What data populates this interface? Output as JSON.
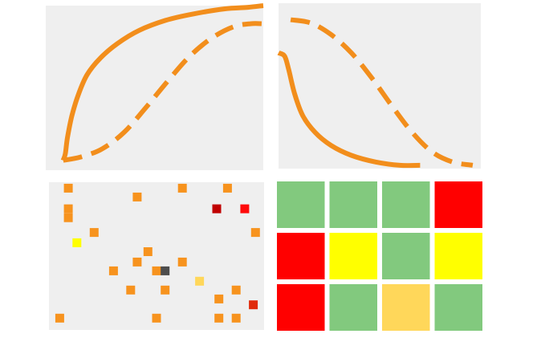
{
  "colors": {
    "panel_bg": "#efefef",
    "curve": "#f28e1c",
    "grid_green": "#82c97e",
    "grid_red": "#ff0000",
    "grid_yellow": "#ffff00",
    "grid_lightorange": "#ffd75a"
  },
  "chart_data": [
    {
      "type": "line",
      "panel": "top-left",
      "grid": false,
      "xlim": [
        0,
        1
      ],
      "ylim": [
        0,
        1
      ],
      "series": [
        {
          "style": "solid",
          "color": "#f28e1c",
          "x": [
            0.08,
            0.09,
            0.1,
            0.12,
            0.15,
            0.19,
            0.25,
            0.33,
            0.43,
            0.55,
            0.68,
            0.82,
            0.93,
            1.0
          ],
          "y": [
            0.06,
            0.1,
            0.2,
            0.33,
            0.46,
            0.58,
            0.68,
            0.77,
            0.85,
            0.91,
            0.95,
            0.98,
            0.99,
            1.0
          ]
        },
        {
          "style": "dashed",
          "color": "#f28e1c",
          "x": [
            0.08,
            0.16,
            0.26,
            0.36,
            0.46,
            0.56,
            0.66,
            0.76,
            0.86,
            0.94,
            1.0
          ],
          "y": [
            0.06,
            0.08,
            0.13,
            0.23,
            0.38,
            0.54,
            0.69,
            0.8,
            0.87,
            0.89,
            0.89
          ]
        }
      ]
    },
    {
      "type": "line",
      "panel": "top-right",
      "grid": false,
      "xlim": [
        0,
        1
      ],
      "ylim": [
        0,
        1
      ],
      "series": [
        {
          "style": "solid",
          "color": "#f28e1c",
          "x": [
            0.0,
            0.03,
            0.05,
            0.08,
            0.12,
            0.18,
            0.26,
            0.36,
            0.48,
            0.6,
            0.7
          ],
          "y": [
            0.7,
            0.68,
            0.6,
            0.45,
            0.32,
            0.22,
            0.14,
            0.08,
            0.04,
            0.02,
            0.02
          ]
        },
        {
          "style": "dashed",
          "color": "#f28e1c",
          "x": [
            0.06,
            0.16,
            0.26,
            0.36,
            0.46,
            0.56,
            0.66,
            0.76,
            0.86,
            0.96
          ],
          "y": [
            0.9,
            0.88,
            0.81,
            0.7,
            0.55,
            0.38,
            0.22,
            0.1,
            0.04,
            0.02
          ]
        }
      ]
    },
    {
      "type": "scatter",
      "panel": "bottom-left",
      "grid": false,
      "xlim": [
        0,
        1
      ],
      "ylim": [
        0,
        1
      ],
      "points": [
        {
          "x": 0.09,
          "y": 0.96,
          "color": "#f7931e"
        },
        {
          "x": 0.09,
          "y": 0.82,
          "color": "#f7931e"
        },
        {
          "x": 0.09,
          "y": 0.76,
          "color": "#f7931e"
        },
        {
          "x": 0.41,
          "y": 0.9,
          "color": "#f7931e"
        },
        {
          "x": 0.62,
          "y": 0.96,
          "color": "#f7931e"
        },
        {
          "x": 0.83,
          "y": 0.96,
          "color": "#f7931e"
        },
        {
          "x": 0.78,
          "y": 0.82,
          "color": "#c00000"
        },
        {
          "x": 0.91,
          "y": 0.82,
          "color": "#ff0a0a"
        },
        {
          "x": 0.96,
          "y": 0.66,
          "color": "#f7931e"
        },
        {
          "x": 0.21,
          "y": 0.66,
          "color": "#f7931e"
        },
        {
          "x": 0.13,
          "y": 0.59,
          "color": "#ffff00"
        },
        {
          "x": 0.46,
          "y": 0.53,
          "color": "#f7931e"
        },
        {
          "x": 0.41,
          "y": 0.46,
          "color": "#f7931e"
        },
        {
          "x": 0.62,
          "y": 0.46,
          "color": "#f7931e"
        },
        {
          "x": 0.3,
          "y": 0.4,
          "color": "#f7931e"
        },
        {
          "x": 0.5,
          "y": 0.4,
          "color": "#f7931e"
        },
        {
          "x": 0.54,
          "y": 0.4,
          "color": "#4d4d4d"
        },
        {
          "x": 0.7,
          "y": 0.33,
          "color": "#ffd75a"
        },
        {
          "x": 0.38,
          "y": 0.27,
          "color": "#f7931e"
        },
        {
          "x": 0.54,
          "y": 0.27,
          "color": "#f7931e"
        },
        {
          "x": 0.87,
          "y": 0.27,
          "color": "#f7931e"
        },
        {
          "x": 0.79,
          "y": 0.21,
          "color": "#f7931e"
        },
        {
          "x": 0.95,
          "y": 0.17,
          "color": "#e02a0a"
        },
        {
          "x": 0.05,
          "y": 0.08,
          "color": "#f7931e"
        },
        {
          "x": 0.5,
          "y": 0.08,
          "color": "#f7931e"
        },
        {
          "x": 0.79,
          "y": 0.08,
          "color": "#f7931e"
        },
        {
          "x": 0.87,
          "y": 0.08,
          "color": "#f7931e"
        }
      ]
    },
    {
      "type": "heatmap",
      "panel": "bottom-right",
      "rows": 3,
      "cols": 4,
      "cells": [
        [
          "green",
          "green",
          "green",
          "red"
        ],
        [
          "red",
          "yellow",
          "green",
          "yellow"
        ],
        [
          "red",
          "green",
          "lightorange",
          "green"
        ]
      ]
    }
  ]
}
